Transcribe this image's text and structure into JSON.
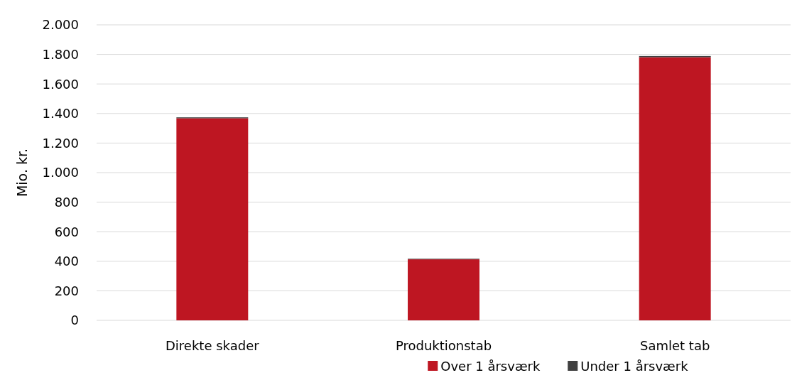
{
  "chart_data": {
    "type": "bar",
    "ylabel": "Mio. kr.",
    "categories": [
      "Direkte skader",
      "Produktionstab",
      "Samlet tab"
    ],
    "series": [
      {
        "name": "Over 1 årsværk",
        "color": "#be1622",
        "values": [
          1368,
          413,
          1781
        ]
      },
      {
        "name": "Under 1 årsværk",
        "color": "#404040",
        "values": [
          6,
          4,
          8
        ]
      }
    ],
    "stacked": true,
    "ylim": [
      0,
      2000
    ],
    "yticks": [
      {
        "value": 0,
        "label": "0"
      },
      {
        "value": 200,
        "label": "200"
      },
      {
        "value": 400,
        "label": "400"
      },
      {
        "value": 600,
        "label": "600"
      },
      {
        "value": 800,
        "label": "800"
      },
      {
        "value": 1000,
        "label": "1.000"
      },
      {
        "value": 1200,
        "label": "1.200"
      },
      {
        "value": 1400,
        "label": "1.400"
      },
      {
        "value": 1600,
        "label": "1.600"
      },
      {
        "value": 1800,
        "label": "1.800"
      },
      {
        "value": 2000,
        "label": "2.000"
      }
    ],
    "grid": "y",
    "legend": "bottom"
  }
}
